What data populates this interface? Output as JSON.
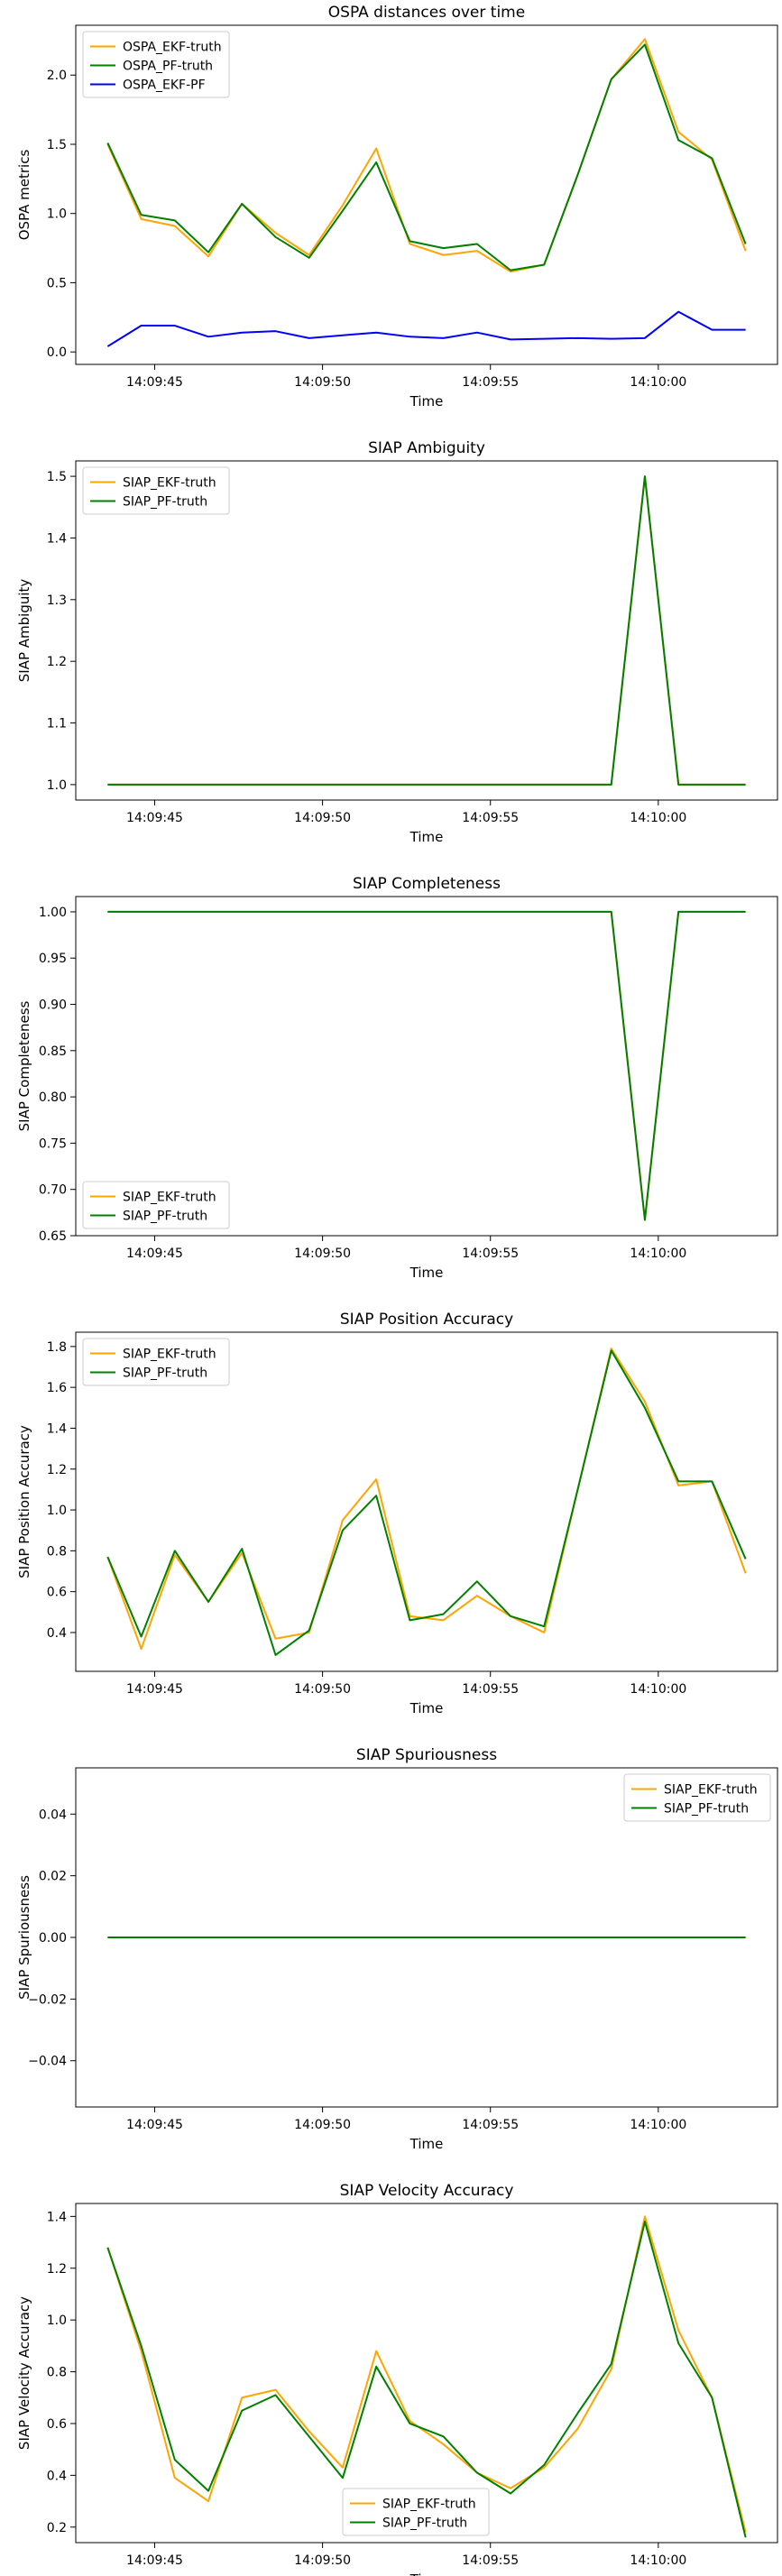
{
  "chart_data": [
    {
      "type": "line",
      "title": "OSPA distances over time",
      "xlabel": "Time",
      "ylabel": "OSPA metrics",
      "legend": "top-left",
      "ylim": [
        -0.09,
        2.36
      ],
      "yticks": [
        "0.0",
        "0.5",
        "1.0",
        "1.5",
        "2.0"
      ],
      "ytick_values": [
        0.0,
        0.5,
        1.0,
        1.5,
        2.0
      ],
      "series": [
        {
          "name": "OSPA_EKF-truth",
          "color": "#FFA500",
          "values": [
            1.5,
            0.96,
            0.91,
            0.69,
            1.07,
            0.86,
            0.7,
            1.06,
            1.47,
            0.78,
            0.7,
            0.73,
            0.58,
            0.63,
            1.28,
            1.97,
            2.26,
            1.59,
            1.39,
            0.73
          ]
        },
        {
          "name": "OSPA_PF-truth",
          "color": "#008000",
          "values": [
            1.51,
            0.99,
            0.95,
            0.72,
            1.07,
            0.83,
            0.68,
            1.02,
            1.37,
            0.8,
            0.75,
            0.78,
            0.59,
            0.63,
            1.28,
            1.97,
            2.22,
            1.53,
            1.4,
            0.78
          ]
        },
        {
          "name": "OSPA_EKF-PF",
          "color": "#0000FF",
          "values": [
            0.04,
            0.19,
            0.19,
            0.11,
            0.14,
            0.15,
            0.1,
            0.12,
            0.14,
            0.11,
            0.1,
            0.14,
            0.09,
            0.095,
            0.1,
            0.095,
            0.1,
            0.29,
            0.16,
            0.16
          ]
        }
      ]
    },
    {
      "type": "line",
      "title": "SIAP Ambiguity",
      "xlabel": "Time",
      "ylabel": "SIAP Ambiguity",
      "legend": "top-left",
      "ylim": [
        0.975,
        1.525
      ],
      "yticks": [
        "1.0",
        "1.1",
        "1.2",
        "1.3",
        "1.4",
        "1.5"
      ],
      "ytick_values": [
        1.0,
        1.1,
        1.2,
        1.3,
        1.4,
        1.5
      ],
      "series": [
        {
          "name": "SIAP_EKF-truth",
          "color": "#FFA500",
          "values": [
            1,
            1,
            1,
            1,
            1,
            1,
            1,
            1,
            1,
            1,
            1,
            1,
            1,
            1,
            1,
            1,
            1.5,
            1,
            1,
            1
          ]
        },
        {
          "name": "SIAP_PF-truth",
          "color": "#008000",
          "values": [
            1,
            1,
            1,
            1,
            1,
            1,
            1,
            1,
            1,
            1,
            1,
            1,
            1,
            1,
            1,
            1,
            1.5,
            1,
            1,
            1
          ]
        }
      ]
    },
    {
      "type": "line",
      "title": "SIAP Completeness",
      "xlabel": "Time",
      "ylabel": "SIAP Completeness",
      "legend": "bottom-left",
      "ylim": [
        0.65,
        1.0165
      ],
      "yticks": [
        "0.65",
        "0.70",
        "0.75",
        "0.80",
        "0.85",
        "0.90",
        "0.95",
        "1.00"
      ],
      "ytick_values": [
        0.65,
        0.7,
        0.75,
        0.8,
        0.85,
        0.9,
        0.95,
        1.0
      ],
      "series": [
        {
          "name": "SIAP_EKF-truth",
          "color": "#FFA500",
          "values": [
            1,
            1,
            1,
            1,
            1,
            1,
            1,
            1,
            1,
            1,
            1,
            1,
            1,
            1,
            1,
            1,
            0.667,
            1,
            1,
            1
          ]
        },
        {
          "name": "SIAP_PF-truth",
          "color": "#008000",
          "values": [
            1,
            1,
            1,
            1,
            1,
            1,
            1,
            1,
            1,
            1,
            1,
            1,
            1,
            1,
            1,
            1,
            0.667,
            1,
            1,
            1
          ]
        }
      ]
    },
    {
      "type": "line",
      "title": "SIAP Position Accuracy",
      "xlabel": "Time",
      "ylabel": "SIAP Position Accuracy",
      "legend": "top-left",
      "ylim": [
        0.21,
        1.87
      ],
      "yticks": [
        "0.4",
        "0.6",
        "0.8",
        "1.0",
        "1.2",
        "1.4",
        "1.6",
        "1.8"
      ],
      "ytick_values": [
        0.4,
        0.6,
        0.8,
        1.0,
        1.2,
        1.4,
        1.6,
        1.8
      ],
      "series": [
        {
          "name": "SIAP_EKF-truth",
          "color": "#FFA500",
          "values": [
            0.77,
            0.32,
            0.78,
            0.55,
            0.79,
            0.37,
            0.4,
            0.95,
            1.15,
            0.48,
            0.46,
            0.58,
            0.48,
            0.4,
            1.1,
            1.79,
            1.53,
            1.12,
            1.14,
            0.69
          ]
        },
        {
          "name": "SIAP_PF-truth",
          "color": "#008000",
          "values": [
            0.77,
            0.38,
            0.8,
            0.55,
            0.81,
            0.29,
            0.41,
            0.9,
            1.07,
            0.46,
            0.49,
            0.65,
            0.48,
            0.43,
            1.1,
            1.78,
            1.5,
            1.14,
            1.14,
            0.76
          ]
        }
      ]
    },
    {
      "type": "line",
      "title": "SIAP Spuriousness",
      "xlabel": "Time",
      "ylabel": "SIAP Spuriousness",
      "legend": "top-right",
      "ylim": [
        -0.055,
        0.055
      ],
      "yticks": [
        "−0.04",
        "−0.02",
        "0.00",
        "0.02",
        "0.04"
      ],
      "ytick_values": [
        -0.04,
        -0.02,
        0.0,
        0.02,
        0.04
      ],
      "series": [
        {
          "name": "SIAP_EKF-truth",
          "color": "#FFA500",
          "values": [
            0,
            0,
            0,
            0,
            0,
            0,
            0,
            0,
            0,
            0,
            0,
            0,
            0,
            0,
            0,
            0,
            0,
            0,
            0,
            0
          ]
        },
        {
          "name": "SIAP_PF-truth",
          "color": "#008000",
          "values": [
            0,
            0,
            0,
            0,
            0,
            0,
            0,
            0,
            0,
            0,
            0,
            0,
            0,
            0,
            0,
            0,
            0,
            0,
            0,
            0
          ]
        }
      ]
    },
    {
      "type": "line",
      "title": "SIAP Velocity Accuracy",
      "xlabel": "Time",
      "ylabel": "SIAP Velocity Accuracy",
      "legend": "bottom-center",
      "ylim": [
        0.14,
        1.45
      ],
      "yticks": [
        "0.2",
        "0.4",
        "0.6",
        "0.8",
        "1.0",
        "1.2",
        "1.4"
      ],
      "ytick_values": [
        0.2,
        0.4,
        0.6,
        0.8,
        1.0,
        1.2,
        1.4
      ],
      "series": [
        {
          "name": "SIAP_EKF-truth",
          "color": "#FFA500",
          "values": [
            1.28,
            0.88,
            0.39,
            0.3,
            0.7,
            0.73,
            0.57,
            0.43,
            0.88,
            0.61,
            0.52,
            0.41,
            0.35,
            0.43,
            0.58,
            0.81,
            1.4,
            0.96,
            0.7,
            0.18
          ]
        },
        {
          "name": "SIAP_PF-truth",
          "color": "#008000",
          "values": [
            1.28,
            0.9,
            0.46,
            0.34,
            0.65,
            0.71,
            0.55,
            0.39,
            0.82,
            0.6,
            0.55,
            0.41,
            0.33,
            0.44,
            0.64,
            0.83,
            1.38,
            0.91,
            0.7,
            0.16
          ]
        }
      ]
    }
  ],
  "x_time": [
    "14:09:43.6",
    "14:09:44.6",
    "14:09:45.6",
    "14:09:46.6",
    "14:09:47.6",
    "14:09:48.6",
    "14:09:49.6",
    "14:09:50.6",
    "14:09:51.6",
    "14:09:52.6",
    "14:09:53.6",
    "14:09:54.6",
    "14:09:55.6",
    "14:09:56.6",
    "14:09:57.6",
    "14:09:58.6",
    "14:09:59.6",
    "14:10:00.6",
    "14:10:01.6",
    "14:10:02.6"
  ],
  "x_ticks": [
    "14:09:45",
    "14:09:50",
    "14:09:55",
    "14:10:00"
  ]
}
